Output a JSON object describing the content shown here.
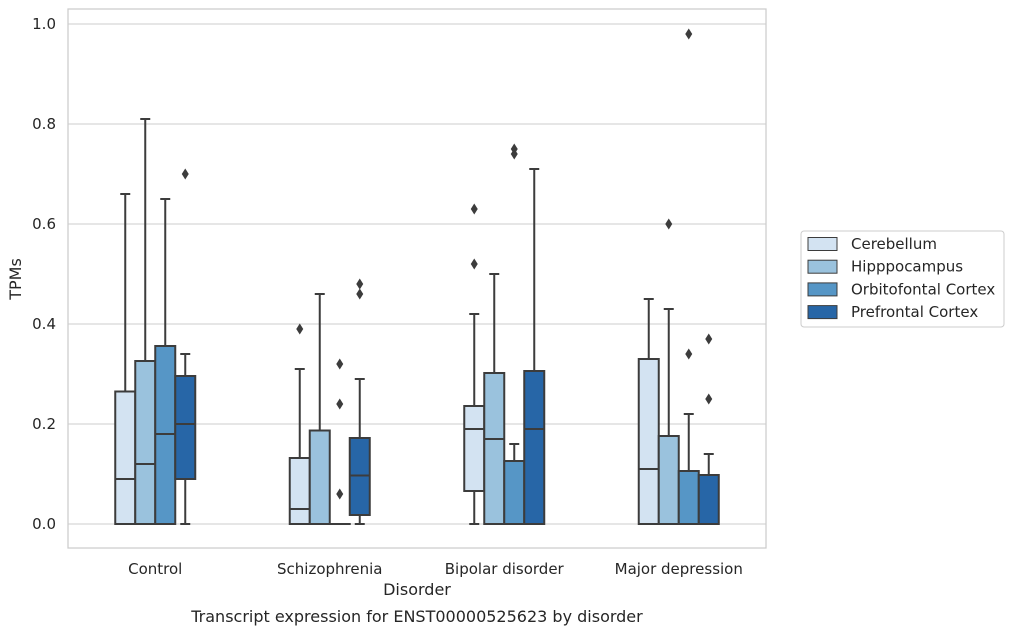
{
  "chart_data": {
    "type": "box",
    "title": "",
    "caption": "Transcript expression for ENST00000525623 by disorder",
    "xlabel": "Disorder",
    "ylabel": "TPMs",
    "ylim": [
      -0.045,
      1.03
    ],
    "yticks": [
      0.0,
      0.2,
      0.4,
      0.6,
      0.8,
      1.0
    ],
    "ytick_labels": [
      "0.0",
      "0.2",
      "0.4",
      "0.6",
      "0.8",
      "1.0"
    ],
    "grid": "horizontal",
    "legend_position": "right",
    "categories": [
      "Control",
      "Schizophrenia",
      "Bipolar disorder",
      "Major depression"
    ],
    "series": [
      {
        "name": "Cerebellum",
        "color": "#d3e3f2",
        "boxes": [
          {
            "whisker_low": 0.0,
            "q1": 0.0,
            "median": 0.09,
            "q3": 0.265,
            "whisker_high": 0.66,
            "outliers": []
          },
          {
            "whisker_low": 0.0,
            "q1": 0.0,
            "median": 0.03,
            "q3": 0.132,
            "whisker_high": 0.31,
            "outliers": [
              0.39
            ]
          },
          {
            "whisker_low": 0.0,
            "q1": 0.066,
            "median": 0.19,
            "q3": 0.236,
            "whisker_high": 0.42,
            "outliers": [
              0.52,
              0.63
            ]
          },
          {
            "whisker_low": 0.0,
            "q1": 0.0,
            "median": 0.11,
            "q3": 0.33,
            "whisker_high": 0.45,
            "outliers": []
          }
        ]
      },
      {
        "name": "Hipppocampus",
        "color": "#9ac2dd",
        "boxes": [
          {
            "whisker_low": 0.0,
            "q1": 0.0,
            "median": 0.12,
            "q3": 0.326,
            "whisker_high": 0.81,
            "outliers": []
          },
          {
            "whisker_low": 0.0,
            "q1": 0.0,
            "median": 0.0,
            "q3": 0.187,
            "whisker_high": 0.46,
            "outliers": []
          },
          {
            "whisker_low": 0.0,
            "q1": 0.0,
            "median": 0.17,
            "q3": 0.302,
            "whisker_high": 0.5,
            "outliers": []
          },
          {
            "whisker_low": 0.0,
            "q1": 0.0,
            "median": 0.0,
            "q3": 0.176,
            "whisker_high": 0.43,
            "outliers": [
              0.6
            ]
          }
        ]
      },
      {
        "name": "Orbitofontal Cortex",
        "color": "#5696c6",
        "boxes": [
          {
            "whisker_low": 0.0,
            "q1": 0.0,
            "median": 0.18,
            "q3": 0.356,
            "whisker_high": 0.65,
            "outliers": []
          },
          {
            "whisker_low": 0.0,
            "q1": 0.0,
            "median": 0.0,
            "q3": 0.0,
            "whisker_high": 0.0,
            "outliers": [
              0.06,
              0.24,
              0.32
            ]
          },
          {
            "whisker_low": 0.0,
            "q1": 0.0,
            "median": 0.0,
            "q3": 0.126,
            "whisker_high": 0.16,
            "outliers": [
              0.74,
              0.75
            ]
          },
          {
            "whisker_low": 0.0,
            "q1": 0.0,
            "median": 0.0,
            "q3": 0.106,
            "whisker_high": 0.22,
            "outliers": [
              0.34,
              0.98
            ]
          }
        ]
      },
      {
        "name": "Prefrontal Cortex",
        "color": "#2766a7",
        "boxes": [
          {
            "whisker_low": 0.0,
            "q1": 0.09,
            "median": 0.2,
            "q3": 0.296,
            "whisker_high": 0.34,
            "outliers": [
              0.7
            ]
          },
          {
            "whisker_low": 0.0,
            "q1": 0.018,
            "median": 0.097,
            "q3": 0.172,
            "whisker_high": 0.29,
            "outliers": [
              0.46,
              0.48
            ]
          },
          {
            "whisker_low": 0.0,
            "q1": 0.0,
            "median": 0.19,
            "q3": 0.306,
            "whisker_high": 0.71,
            "outliers": []
          },
          {
            "whisker_low": 0.0,
            "q1": 0.0,
            "median": 0.0,
            "q3": 0.098,
            "whisker_high": 0.14,
            "outliers": [
              0.25,
              0.37
            ]
          }
        ]
      }
    ]
  }
}
